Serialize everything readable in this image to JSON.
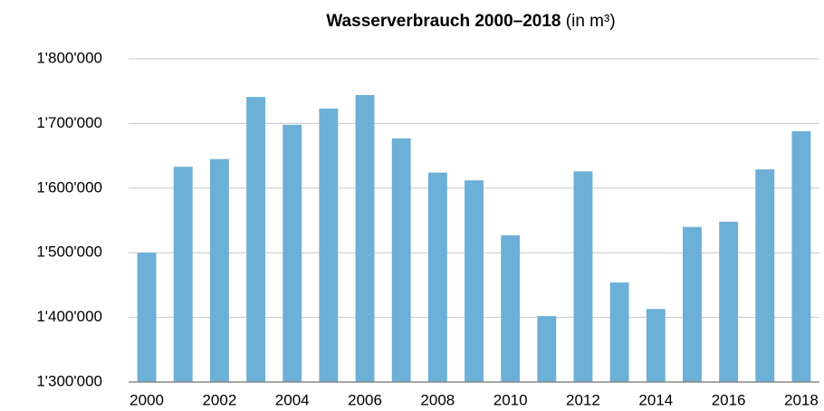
{
  "chart_data": {
    "type": "bar",
    "title": "Wasserverbrauch 2000–2018",
    "title_unit": "(in m³)",
    "categories": [
      "2000",
      null,
      "2002",
      null,
      "2004",
      null,
      "2006",
      null,
      "2008",
      null,
      "2010",
      null,
      "2012",
      null,
      "2014",
      null,
      "2016",
      null,
      "2018"
    ],
    "values": [
      1500000,
      1633000,
      1645000,
      1741000,
      1698000,
      1723000,
      1744000,
      1677000,
      1624000,
      1612000,
      1527000,
      1402000,
      1626000,
      1454000,
      1413000,
      1540000,
      1548000,
      1629000,
      1688000
    ],
    "color": "#6cafd7",
    "ylim": [
      1300000,
      1800000
    ],
    "yticks": [
      {
        "value": 1300000,
        "label": "1'300'000"
      },
      {
        "value": 1400000,
        "label": "1'400'000"
      },
      {
        "value": 1500000,
        "label": "1'500'000"
      },
      {
        "value": 1600000,
        "label": "1'600'000"
      },
      {
        "value": 1700000,
        "label": "1'700'000"
      },
      {
        "value": 1800000,
        "label": "1'800'000"
      }
    ],
    "grid": true
  }
}
